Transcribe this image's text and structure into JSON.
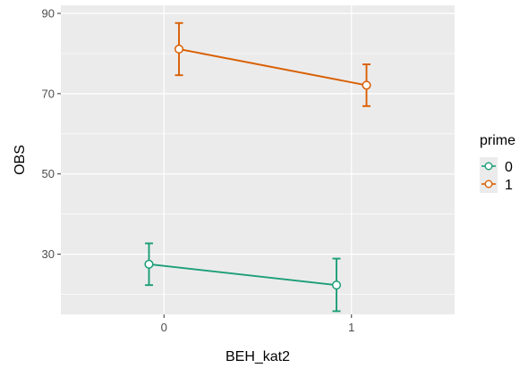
{
  "chart_data": {
    "type": "line",
    "xlabel": "BEH_kat2",
    "ylabel": "OBS",
    "x_categories": [
      "0",
      "1"
    ],
    "xlim": [
      -0.55,
      1.55
    ],
    "ylim": [
      15,
      92
    ],
    "y_ticks": [
      30,
      50,
      70,
      90
    ],
    "grid": true,
    "legend": {
      "title": "prime",
      "position": "right"
    },
    "series": [
      {
        "name": "0",
        "color": "#1b9e77",
        "points": [
          {
            "x": "0",
            "x_dodged": -0.08,
            "y": 27.5,
            "ymin": 22.3,
            "ymax": 32.7
          },
          {
            "x": "1",
            "x_dodged": 0.92,
            "y": 22.3,
            "ymin": 15.8,
            "ymax": 28.9
          }
        ]
      },
      {
        "name": "1",
        "color": "#d95f02",
        "points": [
          {
            "x": "0",
            "x_dodged": 0.08,
            "y": 81.1,
            "ymin": 74.6,
            "ymax": 87.6
          },
          {
            "x": "1",
            "x_dodged": 1.08,
            "y": 72.1,
            "ymin": 66.9,
            "ymax": 77.3
          }
        ]
      }
    ]
  }
}
